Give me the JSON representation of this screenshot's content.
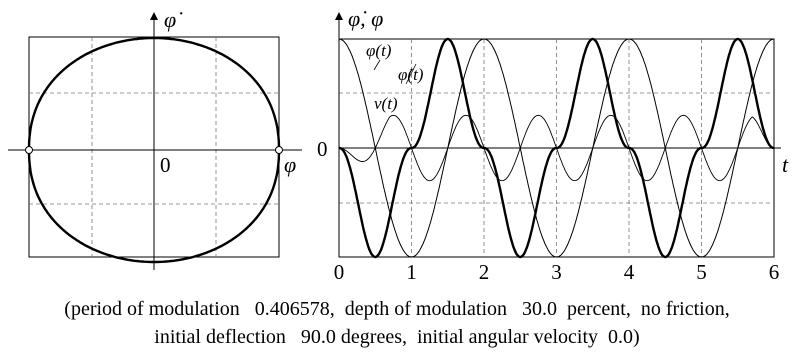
{
  "chart_data": [
    {
      "type": "line",
      "panel": "phase portrait",
      "xlabel": "φ",
      "ylabel": "φ̇",
      "origin_label": "0",
      "xlim": [
        -1.6,
        1.6
      ],
      "ylim": [
        -1.45,
        1.45
      ],
      "grid": true,
      "series": [
        {
          "points": [
            [
              -1.5708,
              0
            ],
            [
              -1.3,
              0.48
            ],
            [
              -1.0,
              0.77
            ],
            [
              -0.7,
              0.94
            ],
            [
              -0.4,
              1.03
            ],
            [
              0,
              1.06
            ],
            [
              0.4,
              1.03
            ],
            [
              0.7,
              0.94
            ],
            [
              1.0,
              0.77
            ],
            [
              1.3,
              0.48
            ],
            [
              1.5708,
              0
            ],
            [
              1.3,
              -0.48
            ],
            [
              1.0,
              -0.77
            ],
            [
              0.7,
              -0.94
            ],
            [
              0.4,
              -1.03
            ],
            [
              0,
              -1.06
            ],
            [
              -0.4,
              -1.03
            ],
            [
              -0.7,
              -0.94
            ],
            [
              -1.0,
              -0.77
            ],
            [
              -1.3,
              -0.48
            ],
            [
              -1.5708,
              0
            ]
          ]
        }
      ],
      "markers": [
        [
          -1.5708,
          0
        ],
        [
          1.5708,
          0
        ]
      ]
    },
    {
      "type": "line",
      "panel": "time histories",
      "xlabel": "t",
      "ylabel": "φ̇, φ",
      "origin_label": "0",
      "xlim": [
        0,
        6
      ],
      "x_ticks": [
        "0",
        "1",
        "2",
        "3",
        "4",
        "5",
        "6"
      ],
      "ylim": [
        -1,
        1
      ],
      "grid": true,
      "series": [
        {
          "name": "φ(t)",
          "x": [
            0,
            0.5,
            1,
            1.5,
            2,
            2.5,
            3,
            3.5,
            4,
            4.5,
            5,
            5.5,
            6
          ],
          "y": [
            1,
            0,
            -1,
            0,
            1,
            0,
            -1,
            0,
            1,
            0,
            -1,
            0,
            1
          ]
        },
        {
          "name": "φ̇(t)",
          "x": [
            0,
            0.5,
            1,
            1.5,
            2,
            2.5,
            3,
            3.5,
            4,
            4.5,
            5,
            5.5,
            6
          ],
          "y": [
            0,
            -1,
            0,
            1,
            0,
            -1,
            0,
            1,
            0,
            -1,
            0,
            1,
            0
          ]
        },
        {
          "name": "ν(t)",
          "x": [
            0,
            0.75,
            1.25,
            1.75,
            2.25,
            2.75,
            3.25,
            3.75,
            4.25,
            4.75,
            5.25,
            5.75,
            6
          ],
          "y": [
            0,
            0.3,
            -0.3,
            0.3,
            -0.3,
            0.3,
            -0.3,
            0.3,
            -0.3,
            0.3,
            -0.3,
            0.3,
            0
          ]
        }
      ]
    }
  ],
  "caption": {
    "line1": "(period of modulation   0.406578,  depth of modulation   30.0  percent,  no friction,",
    "line2": "initial deflection   90.0 degrees,  initial angular velocity  0.0)"
  }
}
